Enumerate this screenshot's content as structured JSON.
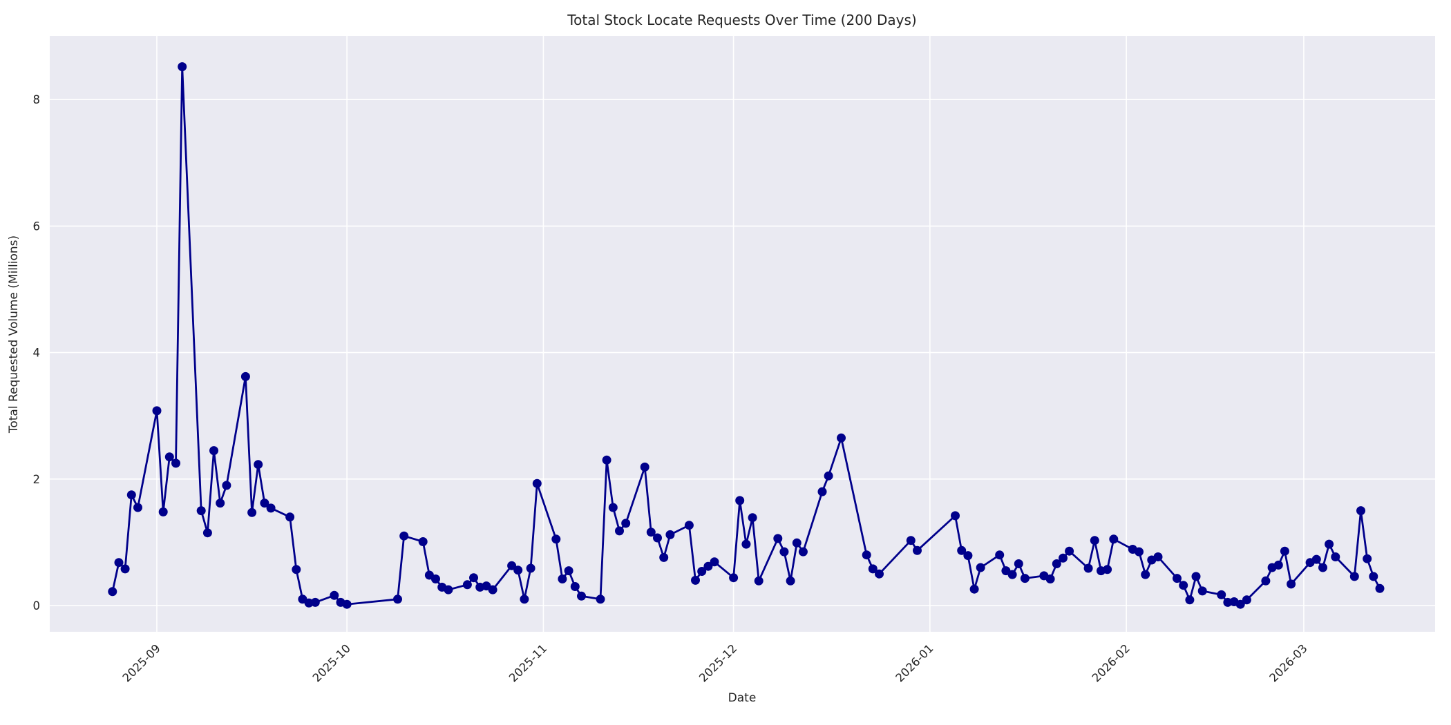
{
  "chart_data": {
    "type": "line",
    "title": "Total Stock Locate Requests Over Time (200 Days)",
    "xlabel": "Date",
    "ylabel": "Total Requested Volume (Millions)",
    "x_tick_labels": [
      "2025-09",
      "2025-10",
      "2025-11",
      "2025-12",
      "2026-01",
      "2026-02",
      "2026-03"
    ],
    "y_ticks": [
      0,
      2,
      4,
      6,
      8
    ],
    "ylim": [
      -0.43,
      9.0
    ],
    "x_range": [
      "2025-08-25",
      "2026-03-13"
    ],
    "grid": true,
    "legend_position": "none",
    "line_color": "#00008b",
    "marker_style": "circle",
    "plot_bg_color": "#eaeaf2",
    "grid_color": "#ffffff",
    "text_color": "#262626",
    "series": [
      {
        "name": "Total Stock Locate Requests (Millions)",
        "x": [
          "2025-08-25",
          "2025-08-26",
          "2025-08-27",
          "2025-08-28",
          "2025-08-29",
          "2025-09-01",
          "2025-09-02",
          "2025-09-03",
          "2025-09-04",
          "2025-09-05",
          "2025-09-08",
          "2025-09-09",
          "2025-09-10",
          "2025-09-11",
          "2025-09-12",
          "2025-09-15",
          "2025-09-16",
          "2025-09-17",
          "2025-09-18",
          "2025-09-19",
          "2025-09-22",
          "2025-09-23",
          "2025-09-24",
          "2025-09-25",
          "2025-09-26",
          "2025-09-29",
          "2025-09-30",
          "2025-10-01",
          "2025-10-09",
          "2025-10-10",
          "2025-10-13",
          "2025-10-14",
          "2025-10-15",
          "2025-10-16",
          "2025-10-17",
          "2025-10-20",
          "2025-10-21",
          "2025-10-22",
          "2025-10-23",
          "2025-10-24",
          "2025-10-27",
          "2025-10-28",
          "2025-10-29",
          "2025-10-30",
          "2025-10-31",
          "2025-11-03",
          "2025-11-04",
          "2025-11-05",
          "2025-11-06",
          "2025-11-07",
          "2025-11-10",
          "2025-11-11",
          "2025-11-12",
          "2025-11-13",
          "2025-11-14",
          "2025-11-17",
          "2025-11-18",
          "2025-11-19",
          "2025-11-20",
          "2025-11-21",
          "2025-11-24",
          "2025-11-25",
          "2025-11-26",
          "2025-11-27",
          "2025-11-28",
          "2025-12-01",
          "2025-12-02",
          "2025-12-03",
          "2025-12-04",
          "2025-12-05",
          "2025-12-08",
          "2025-12-09",
          "2025-12-10",
          "2025-12-11",
          "2025-12-12",
          "2025-12-15",
          "2025-12-16",
          "2025-12-18",
          "2025-12-22",
          "2025-12-23",
          "2025-12-24",
          "2025-12-29",
          "2025-12-30",
          "2026-01-05",
          "2026-01-06",
          "2026-01-07",
          "2026-01-08",
          "2026-01-09",
          "2026-01-12",
          "2026-01-13",
          "2026-01-14",
          "2026-01-15",
          "2026-01-16",
          "2026-01-19",
          "2026-01-20",
          "2026-01-21",
          "2026-01-22",
          "2026-01-23",
          "2026-01-26",
          "2026-01-27",
          "2026-01-28",
          "2026-01-29",
          "2026-01-30",
          "2026-02-02",
          "2026-02-03",
          "2026-02-04",
          "2026-02-05",
          "2026-02-06",
          "2026-02-09",
          "2026-02-10",
          "2026-02-11",
          "2026-02-12",
          "2026-02-13",
          "2026-02-16",
          "2026-02-17",
          "2026-02-18",
          "2026-02-19",
          "2026-02-20",
          "2026-02-23",
          "2026-02-24",
          "2026-02-25",
          "2026-02-26",
          "2026-02-27",
          "2026-03-02",
          "2026-03-03",
          "2026-03-04",
          "2026-03-05",
          "2026-03-06",
          "2026-03-09",
          "2026-03-10",
          "2026-03-11",
          "2026-03-12",
          "2026-03-13"
        ],
        "y": [
          0.22,
          0.68,
          0.58,
          1.75,
          1.55,
          3.08,
          1.48,
          2.35,
          2.25,
          8.52,
          1.5,
          1.15,
          2.45,
          1.62,
          1.9,
          3.62,
          1.47,
          2.23,
          1.62,
          1.54,
          1.4,
          0.57,
          0.1,
          0.04,
          0.05,
          0.16,
          0.05,
          0.02,
          0.1,
          1.1,
          1.01,
          0.48,
          0.42,
          0.29,
          0.25,
          0.33,
          0.44,
          0.29,
          0.31,
          0.25,
          0.63,
          0.56,
          0.1,
          0.59,
          1.93,
          1.05,
          0.42,
          0.55,
          0.3,
          0.15,
          0.1,
          2.3,
          1.55,
          1.18,
          1.3,
          2.19,
          1.16,
          1.07,
          0.76,
          1.12,
          1.27,
          0.4,
          0.54,
          0.62,
          0.69,
          0.44,
          1.66,
          0.97,
          1.39,
          0.39,
          1.06,
          0.85,
          0.39,
          0.99,
          0.85,
          1.8,
          2.05,
          2.65,
          0.8,
          0.58,
          0.5,
          1.03,
          0.87,
          1.42,
          0.87,
          0.79,
          0.26,
          0.6,
          0.8,
          0.55,
          0.49,
          0.66,
          0.43,
          0.47,
          0.42,
          0.66,
          0.75,
          0.86,
          0.59,
          1.03,
          0.55,
          0.57,
          1.05,
          0.89,
          0.85,
          0.49,
          0.72,
          0.77,
          0.43,
          0.32,
          0.09,
          0.46,
          0.23,
          0.17,
          0.05,
          0.06,
          0.02,
          0.09,
          0.39,
          0.6,
          0.64,
          0.86,
          0.34,
          0.68,
          0.73,
          0.6,
          0.97,
          0.77,
          0.46,
          1.5,
          0.74,
          0.46,
          0.27
        ]
      }
    ]
  }
}
